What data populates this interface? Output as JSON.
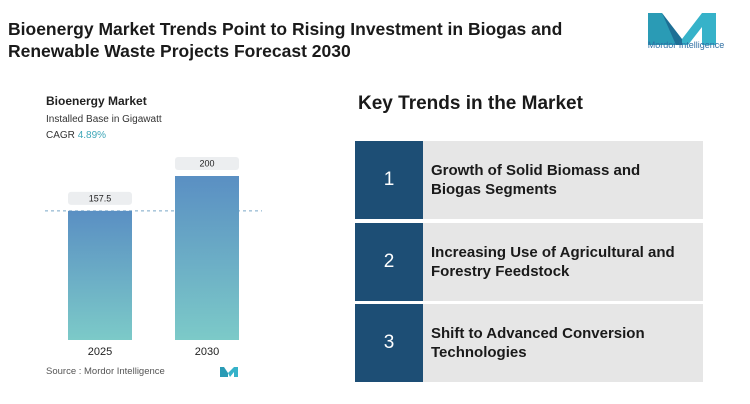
{
  "header": {
    "title": "Bioenergy Market Trends Point to Rising Investment in Biogas and Renewable Waste Projects Forecast 2030",
    "logo_text": "Mordor Intelligence"
  },
  "chart_data": {
    "type": "bar",
    "title": "Bioenergy Market",
    "subtitle": "Installed Base in Gigawatt",
    "cagr_label": "CAGR",
    "cagr": "4.89%",
    "categories": [
      "2025",
      "2030"
    ],
    "values": [
      157.5,
      200
    ],
    "ylim": [
      0,
      200
    ],
    "source": "Source : Mordor Intelligence"
  },
  "trends_title": "Key Trends in the Market",
  "trends": [
    {
      "number": "1",
      "text": "Growth of Solid Biomass and Biogas Segments"
    },
    {
      "number": "2",
      "text": "Increasing Use of Agricultural and Forestry Feedstock"
    },
    {
      "number": "3",
      "text": "Shift to Advanced Conversion Technologies"
    }
  ]
}
